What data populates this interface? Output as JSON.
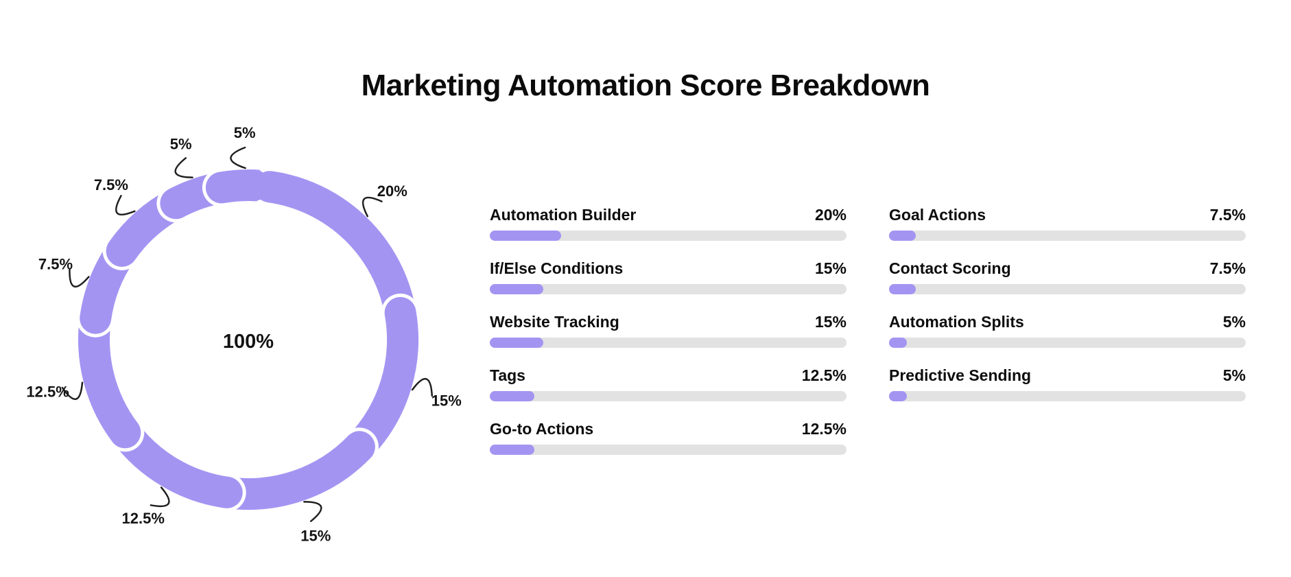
{
  "title": "Marketing Automation Score Breakdown",
  "colors": {
    "accent": "#a494f2",
    "track": "#e2e2e2",
    "text": "#111111",
    "leader": "#1f1f1f"
  },
  "chart_data": {
    "type": "pie",
    "subtype": "donut",
    "title": "Marketing Automation Score Breakdown",
    "center_label": "100%",
    "start_angle_deg": -10,
    "direction": "clockwise",
    "legend_position": "none",
    "donut_segments": [
      {
        "label": "5%",
        "value": 5
      },
      {
        "label": "20%",
        "value": 20
      },
      {
        "label": "15%",
        "value": 15
      },
      {
        "label": "15%",
        "value": 15
      },
      {
        "label": "12.5%",
        "value": 12.5
      },
      {
        "label": "12.5%",
        "value": 12.5
      },
      {
        "label": "7.5%",
        "value": 7.5
      },
      {
        "label": "7.5%",
        "value": 7.5
      },
      {
        "label": "5%",
        "value": 5
      }
    ],
    "items": [
      {
        "label": "Automation Builder",
        "pct": "20%",
        "value": 20
      },
      {
        "label": "If/Else Conditions",
        "pct": "15%",
        "value": 15
      },
      {
        "label": "Website Tracking",
        "pct": "15%",
        "value": 15
      },
      {
        "label": "Tags",
        "pct": "12.5%",
        "value": 12.5
      },
      {
        "label": "Go-to Actions",
        "pct": "12.5%",
        "value": 12.5
      },
      {
        "label": "Goal Actions",
        "pct": "7.5%",
        "value": 7.5
      },
      {
        "label": "Contact Scoring",
        "pct": "7.5%",
        "value": 7.5
      },
      {
        "label": "Automation Splits",
        "pct": "5%",
        "value": 5
      },
      {
        "label": "Predictive Sending",
        "pct": "5%",
        "value": 5
      }
    ]
  }
}
